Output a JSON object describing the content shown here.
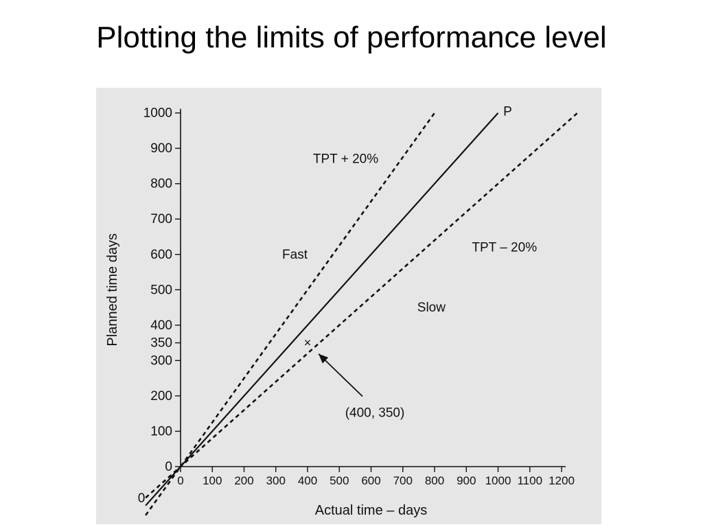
{
  "slide": {
    "title": "Plotting the limits of performance level"
  },
  "chart_data": {
    "type": "line",
    "xlabel": "Actual time – days",
    "ylabel": "Planned time days",
    "x_ticks": [
      0,
      100,
      200,
      300,
      400,
      500,
      600,
      700,
      800,
      900,
      1000,
      1100,
      1200
    ],
    "y_ticks": [
      0,
      100,
      200,
      300,
      350,
      400,
      500,
      600,
      700,
      800,
      900,
      1000
    ],
    "xlim": [
      0,
      1200
    ],
    "ylim": [
      0,
      1000
    ],
    "origin_label": "0",
    "grid": false,
    "series": [
      {
        "name": "P",
        "style": "solid",
        "x": [
          0,
          1000
        ],
        "y": [
          0,
          1000
        ]
      },
      {
        "name": "TPT + 20%",
        "style": "dashed",
        "x": [
          0,
          800
        ],
        "y": [
          0,
          1000
        ]
      },
      {
        "name": "TPT – 20%",
        "style": "dashed",
        "x": [
          0,
          1250
        ],
        "y": [
          0,
          1000
        ]
      }
    ],
    "region_labels": [
      {
        "text": "Fast",
        "x": 360,
        "y": 600
      },
      {
        "text": "Slow",
        "x": 790,
        "y": 450
      }
    ],
    "annotations": [
      {
        "marker": "×",
        "x": 400,
        "y": 350,
        "label": "(400, 350)"
      }
    ]
  }
}
